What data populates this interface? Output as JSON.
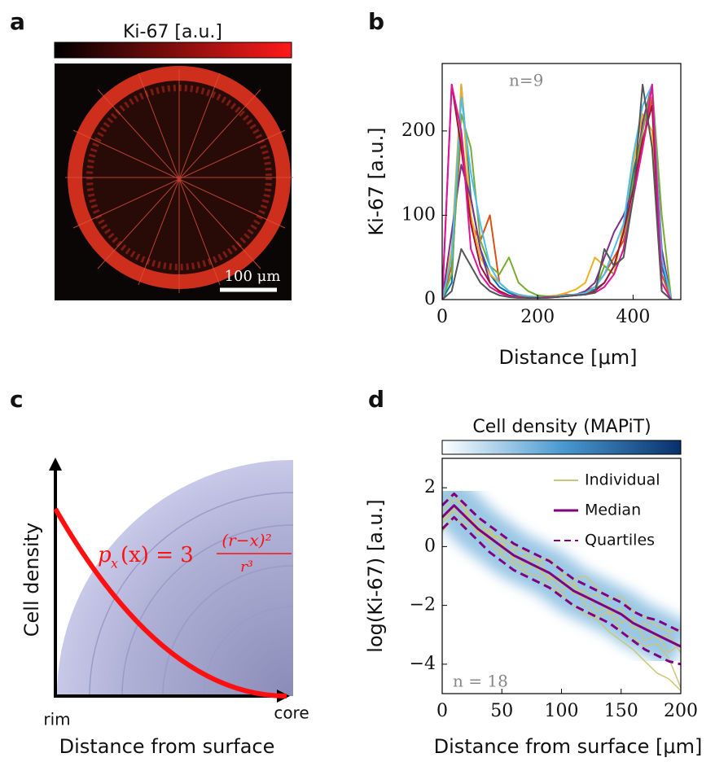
{
  "panel_labels": [
    "a",
    "b",
    "c",
    "d"
  ],
  "image_panel": {
    "colorbar_label": "Ki-67 [a.u.]",
    "scale_bar": "100 μm"
  },
  "diagram": {
    "y_label": "Cell density",
    "x_start": "rim",
    "x_end": "core",
    "x_label": "Distance from surface",
    "formula": {
      "lhs": "p",
      "subscript": "x",
      "rhs": "(x) = 3",
      "numerator": "(r−x)²",
      "denominator": "r³"
    }
  },
  "chart_data": [
    {
      "type": "line",
      "y_label": "Ki-67 [a.u.]",
      "x_label": "Distance [μm]",
      "annotation": "n=9",
      "xlim": [
        0,
        500
      ],
      "xticks": [
        0,
        200,
        400
      ],
      "ylim": [
        0,
        280
      ],
      "yticks": [
        0,
        100,
        200
      ],
      "x": [
        0,
        20,
        40,
        60,
        80,
        100,
        120,
        140,
        160,
        180,
        200,
        220,
        240,
        260,
        280,
        300,
        320,
        340,
        360,
        380,
        400,
        420,
        440,
        460,
        480
      ],
      "series": [
        {
          "color": "#0072BD",
          "values": [
            0,
            20,
            255,
            120,
            60,
            30,
            15,
            8,
            4,
            3,
            2,
            3,
            4,
            5,
            6,
            8,
            12,
            20,
            40,
            80,
            150,
            200,
            255,
            40,
            0
          ]
        },
        {
          "color": "#D95319",
          "values": [
            0,
            40,
            200,
            90,
            70,
            100,
            20,
            10,
            5,
            3,
            2,
            3,
            4,
            6,
            5,
            10,
            15,
            30,
            50,
            70,
            120,
            180,
            240,
            30,
            0
          ]
        },
        {
          "color": "#EDB120",
          "values": [
            0,
            60,
            255,
            100,
            50,
            30,
            20,
            10,
            6,
            4,
            3,
            4,
            5,
            8,
            12,
            20,
            50,
            40,
            30,
            90,
            160,
            220,
            200,
            20,
            0
          ]
        },
        {
          "color": "#7E2F8E",
          "values": [
            0,
            80,
            160,
            120,
            60,
            20,
            10,
            5,
            3,
            2,
            2,
            3,
            4,
            5,
            6,
            10,
            20,
            50,
            80,
            100,
            130,
            210,
            255,
            60,
            0
          ]
        },
        {
          "color": "#77AC30",
          "values": [
            0,
            30,
            220,
            180,
            70,
            40,
            30,
            50,
            20,
            10,
            5,
            4,
            3,
            4,
            5,
            8,
            10,
            40,
            30,
            60,
            140,
            200,
            255,
            100,
            0
          ]
        },
        {
          "color": "#4DBEEE",
          "values": [
            0,
            50,
            240,
            150,
            90,
            40,
            20,
            10,
            6,
            4,
            3,
            3,
            4,
            5,
            6,
            8,
            15,
            30,
            60,
            90,
            170,
            230,
            255,
            50,
            0
          ]
        },
        {
          "color": "#A2142F",
          "values": [
            0,
            255,
            180,
            90,
            40,
            20,
            10,
            5,
            3,
            2,
            2,
            3,
            3,
            4,
            5,
            6,
            10,
            20,
            40,
            80,
            130,
            190,
            230,
            10,
            0
          ]
        },
        {
          "color": "#E0139C",
          "values": [
            0,
            255,
            200,
            60,
            30,
            15,
            8,
            4,
            3,
            2,
            2,
            3,
            3,
            4,
            5,
            6,
            8,
            15,
            30,
            60,
            120,
            180,
            255,
            20,
            0
          ]
        },
        {
          "color": "#555555",
          "values": [
            0,
            10,
            60,
            40,
            20,
            10,
            5,
            3,
            2,
            2,
            2,
            2,
            3,
            4,
            5,
            6,
            8,
            60,
            40,
            50,
            120,
            255,
            180,
            10,
            0
          ]
        }
      ]
    },
    {
      "type": "line",
      "colorbar_label": "Cell density (MAPiT)",
      "y_label": "log(Ki-67) [a.u.]",
      "x_label": "Distance from surface [μm]",
      "annotation": "n = 18",
      "xlim": [
        0,
        200
      ],
      "xticks": [
        0,
        50,
        100,
        150,
        200
      ],
      "ylim": [
        -5,
        3
      ],
      "yticks": [
        {
          "value": -4,
          "label": "−4"
        },
        {
          "value": -2,
          "label": "−2"
        },
        0,
        2
      ],
      "x": [
        0,
        10,
        20,
        30,
        40,
        50,
        60,
        70,
        80,
        90,
        100,
        110,
        120,
        130,
        140,
        150,
        160,
        170,
        180,
        190,
        200
      ],
      "series": [
        {
          "name": "Individual",
          "color": "#c9c77a",
          "dash": false,
          "values": [
            [
              0.8,
              1.2,
              0.9,
              0.7,
              0.2,
              0.1,
              -0.4,
              -0.3,
              -0.8,
              -1.1,
              -1.0,
              -1.6,
              -1.5,
              -2.2,
              -2.0,
              -2.6,
              -2.4,
              -3.2,
              -3.0,
              -3.6,
              -3.3
            ],
            [
              1.2,
              1.6,
              1.3,
              0.5,
              0.6,
              -0.2,
              -0.1,
              -0.8,
              -0.6,
              -1.2,
              -1.5,
              -1.3,
              -2.0,
              -2.4,
              -2.2,
              -2.9,
              -3.1,
              -3.4,
              -3.3,
              -3.8,
              -4.8
            ],
            [
              0.5,
              1.0,
              0.7,
              0.9,
              0.4,
              0.3,
              0.0,
              -0.2,
              -0.5,
              -0.4,
              -0.9,
              -1.1,
              -1.0,
              -1.4,
              -1.8,
              -1.7,
              -2.2,
              -2.4,
              -2.7,
              -2.9,
              -2.8
            ],
            [
              1.4,
              1.8,
              1.2,
              0.6,
              0.1,
              -0.3,
              -0.6,
              -0.9,
              -1.0,
              -1.4,
              -1.6,
              -2.0,
              -2.3,
              -2.5,
              -2.9,
              -3.2,
              -3.5,
              -3.9,
              -4.3,
              -4.5,
              -4.9
            ],
            [
              0.9,
              1.3,
              1.1,
              0.4,
              0.5,
              0.2,
              -0.5,
              -0.6,
              -0.4,
              -1.0,
              -1.3,
              -1.2,
              -1.8,
              -1.6,
              -2.3,
              -2.1,
              -2.8,
              -2.6,
              -3.1,
              -3.0,
              -3.6
            ]
          ]
        },
        {
          "name": "Median",
          "color": "#800080",
          "dash": false,
          "values": [
            1.0,
            1.4,
            1.0,
            0.6,
            0.3,
            0.0,
            -0.3,
            -0.5,
            -0.7,
            -0.9,
            -1.2,
            -1.5,
            -1.7,
            -1.9,
            -2.1,
            -2.3,
            -2.6,
            -2.8,
            -3.0,
            -3.2,
            -3.4
          ]
        },
        {
          "name": "Quartiles",
          "color": "#800080",
          "dash": true,
          "values": [
            [
              1.4,
              1.8,
              1.4,
              1.0,
              0.7,
              0.4,
              0.1,
              -0.1,
              -0.3,
              -0.5,
              -0.8,
              -1.1,
              -1.3,
              -1.5,
              -1.7,
              -1.9,
              -2.2,
              -2.4,
              -2.5,
              -2.7,
              -2.9
            ],
            [
              0.6,
              1.0,
              0.6,
              0.2,
              -0.2,
              -0.5,
              -0.8,
              -1.0,
              -1.2,
              -1.4,
              -1.7,
              -2.0,
              -2.2,
              -2.4,
              -2.6,
              -2.9,
              -3.2,
              -3.5,
              -3.7,
              -3.9,
              -4.0
            ]
          ]
        }
      ]
    }
  ]
}
